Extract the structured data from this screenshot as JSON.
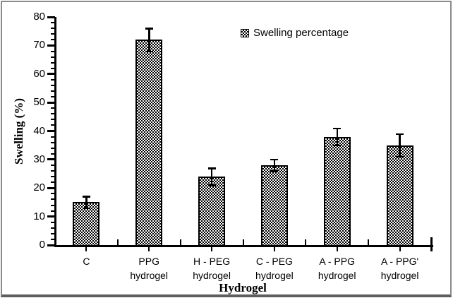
{
  "chart_data": {
    "type": "bar",
    "title": "",
    "categories": [
      "C",
      "PPG hydrogel",
      "H - PEG hydrogel",
      "C - PEG hydrogel",
      "A - PPG hydrogel",
      "A - PPG' hydrogel"
    ],
    "category_lines": [
      [
        "C",
        ""
      ],
      [
        "PPG",
        "hydrogel"
      ],
      [
        "H - PEG",
        "hydrogel"
      ],
      [
        "C - PEG",
        "hydrogel"
      ],
      [
        "A - PPG",
        "hydrogel"
      ],
      [
        "A - PPG'",
        "hydrogel"
      ]
    ],
    "values": [
      15,
      72,
      24,
      28,
      38,
      35
    ],
    "errors": [
      2,
      4,
      3,
      2,
      3,
      4
    ],
    "xlabel": "Hydrogel",
    "ylabel": "Swelling (%)",
    "ylim": [
      0,
      80
    ],
    "ytick_step": 10,
    "yminor_step": 2,
    "yticks": [
      0,
      10,
      20,
      30,
      40,
      50,
      60,
      70,
      80
    ],
    "legend": [
      "Swelling percentage"
    ],
    "legend_position": "top-center",
    "grid": false,
    "bar_fill": "black-white dotted checker pattern",
    "bar_color": "#000000",
    "background": "#ffffff",
    "frame_color": "#8a8a8a"
  }
}
